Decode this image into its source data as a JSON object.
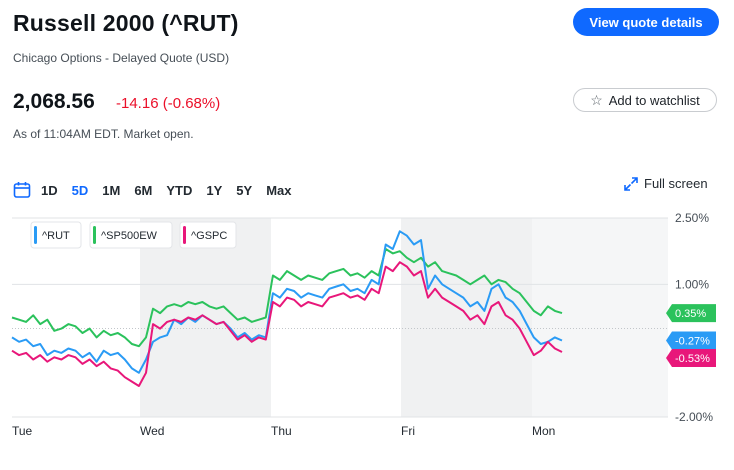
{
  "header": {
    "title": "Russell 2000 (^RUT)",
    "subtitle": "Chicago Options - Delayed Quote (USD)",
    "view_quote_label": "View quote details",
    "watchlist_label": "Add to watchlist"
  },
  "quote": {
    "price": "2,068.56",
    "change": "-14.16 (-0.68%)",
    "as_of": "As of 11:04AM EDT. Market open."
  },
  "ranges": [
    "1D",
    "5D",
    "1M",
    "6M",
    "YTD",
    "1Y",
    "5Y",
    "Max"
  ],
  "active_range": "5D",
  "fullscreen_label": "Full screen",
  "colors": {
    "rut": "#2a9bf5",
    "sp500ew": "#2bc25c",
    "gspc": "#e8177a",
    "negative": "#eb0f29",
    "accent": "#0f69ff"
  },
  "chart_data": {
    "type": "line",
    "y_unit": "%",
    "ylim": [
      -2.0,
      2.5
    ],
    "y_ticks": [
      "2.50%",
      "1.00%",
      "-2.00%"
    ],
    "x_ticks": [
      "Tue",
      "Wed",
      "Thu",
      "Fri",
      "Mon"
    ],
    "legend": [
      "^RUT",
      "^SP500EW",
      "^GSPC"
    ],
    "badges": [
      {
        "series": "^SP500EW",
        "label": "0.35%",
        "value": 0.35
      },
      {
        "series": "^RUT",
        "label": "-0.27%",
        "value": -0.27
      },
      {
        "series": "^GSPC",
        "label": "-0.53%",
        "value": -0.53
      }
    ],
    "series": [
      {
        "name": "^RUT",
        "values": [
          -0.2,
          -0.3,
          -0.25,
          -0.4,
          -0.35,
          -0.6,
          -0.5,
          -0.55,
          -0.45,
          -0.5,
          -0.65,
          -0.55,
          -0.75,
          -0.5,
          -0.6,
          -0.55,
          -0.7,
          -0.9,
          -1.0,
          -0.7,
          -0.3,
          -0.2,
          -0.15,
          0.2,
          0.1,
          0.25,
          0.15,
          0.3,
          0.2,
          0.1,
          0.15,
          0.0,
          -0.2,
          -0.1,
          -0.25,
          -0.15,
          -0.2,
          0.8,
          0.7,
          0.9,
          0.85,
          0.7,
          0.8,
          0.75,
          0.7,
          0.9,
          0.95,
          1.0,
          0.85,
          0.9,
          0.8,
          1.1,
          1.0,
          1.9,
          1.8,
          2.2,
          2.1,
          1.9,
          2.0,
          0.9,
          1.2,
          1.0,
          0.9,
          0.8,
          0.7,
          0.5,
          0.6,
          0.4,
          0.9,
          1.0,
          0.7,
          0.6,
          0.4,
          0.1,
          -0.2,
          -0.35,
          -0.3,
          -0.2,
          -0.27
        ]
      },
      {
        "name": "^SP500EW",
        "values": [
          0.25,
          0.2,
          0.15,
          0.3,
          0.1,
          0.2,
          -0.05,
          0.0,
          0.1,
          0.05,
          -0.1,
          0.0,
          -0.2,
          -0.05,
          -0.15,
          -0.1,
          -0.2,
          -0.35,
          -0.4,
          -0.2,
          0.45,
          0.35,
          0.5,
          0.55,
          0.5,
          0.6,
          0.55,
          0.6,
          0.5,
          0.45,
          0.5,
          0.35,
          0.2,
          0.25,
          0.15,
          0.2,
          0.25,
          1.2,
          1.1,
          1.3,
          1.2,
          1.1,
          1.2,
          1.15,
          1.1,
          1.25,
          1.3,
          1.35,
          1.2,
          1.25,
          1.15,
          1.3,
          1.2,
          1.8,
          1.7,
          1.75,
          1.6,
          1.5,
          1.6,
          1.4,
          1.5,
          1.3,
          1.25,
          1.2,
          1.1,
          1.0,
          1.1,
          1.2,
          1.0,
          1.1,
          1.05,
          0.9,
          0.8,
          0.6,
          0.4,
          0.3,
          0.5,
          0.4,
          0.35
        ]
      },
      {
        "name": "^GSPC",
        "values": [
          -0.5,
          -0.6,
          -0.55,
          -0.7,
          -0.6,
          -0.75,
          -0.65,
          -0.7,
          -0.6,
          -0.65,
          -0.8,
          -0.7,
          -0.85,
          -0.75,
          -0.9,
          -0.95,
          -1.1,
          -1.2,
          -1.3,
          -1.0,
          0.1,
          0.0,
          0.15,
          0.2,
          0.15,
          0.25,
          0.2,
          0.3,
          0.2,
          0.1,
          0.15,
          -0.05,
          -0.25,
          -0.15,
          -0.3,
          -0.2,
          -0.25,
          0.6,
          0.5,
          0.7,
          0.65,
          0.5,
          0.6,
          0.55,
          0.5,
          0.7,
          0.75,
          0.8,
          0.7,
          0.75,
          0.65,
          0.9,
          0.8,
          1.4,
          1.3,
          1.5,
          1.4,
          1.2,
          1.3,
          0.7,
          0.9,
          0.7,
          0.6,
          0.5,
          0.4,
          0.2,
          0.3,
          0.1,
          0.5,
          0.6,
          0.3,
          0.2,
          0.0,
          -0.3,
          -0.6,
          -0.5,
          -0.3,
          -0.45,
          -0.53
        ]
      }
    ]
  }
}
